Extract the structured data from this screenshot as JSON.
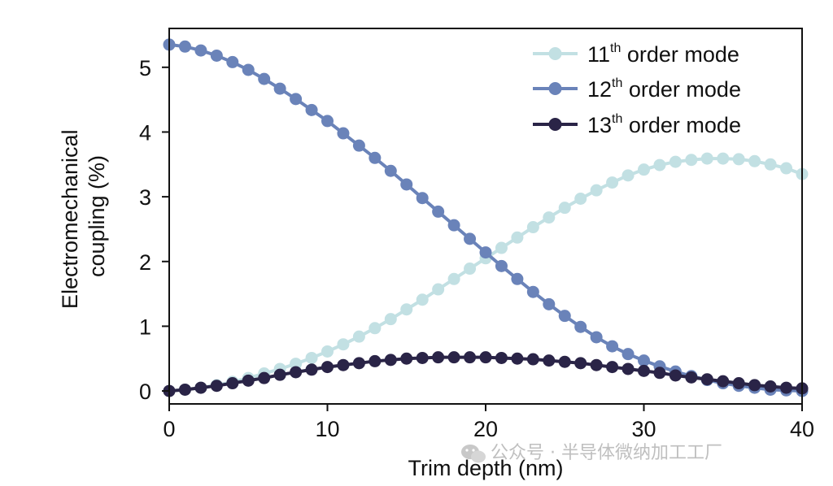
{
  "chart_data": {
    "type": "line",
    "title": "",
    "xlabel": "Trim depth (nm)",
    "ylabel_lines": [
      "Electromechanical",
      "coupling (%)"
    ],
    "xlim": [
      0,
      40
    ],
    "ylim": [
      -0.2,
      5.6
    ],
    "xticks": [
      0,
      10,
      20,
      30,
      40
    ],
    "yticks": [
      0,
      1,
      2,
      3,
      4,
      5
    ],
    "grid": false,
    "legend_position": "top-right",
    "x": [
      0,
      1,
      2,
      3,
      4,
      5,
      6,
      7,
      8,
      9,
      10,
      11,
      12,
      13,
      14,
      15,
      16,
      17,
      18,
      19,
      20,
      21,
      22,
      23,
      24,
      25,
      26,
      27,
      28,
      29,
      30,
      31,
      32,
      33,
      34,
      35,
      36,
      37,
      38,
      39,
      40
    ],
    "series": [
      {
        "name": "11th order mode",
        "label_base": "11",
        "label_sup": "th",
        "label_rest": " order mode",
        "color": "#c2e0e3",
        "values": [
          0.0,
          0.02,
          0.05,
          0.09,
          0.14,
          0.2,
          0.27,
          0.34,
          0.42,
          0.51,
          0.61,
          0.72,
          0.84,
          0.97,
          1.11,
          1.26,
          1.41,
          1.57,
          1.73,
          1.89,
          2.05,
          2.21,
          2.37,
          2.53,
          2.68,
          2.83,
          2.97,
          3.1,
          3.22,
          3.33,
          3.42,
          3.49,
          3.54,
          3.57,
          3.59,
          3.59,
          3.58,
          3.55,
          3.5,
          3.44,
          3.35
        ]
      },
      {
        "name": "12th order mode",
        "label_base": "12",
        "label_sup": "th",
        "label_rest": " order mode",
        "color": "#6a83b9",
        "values": [
          5.35,
          5.32,
          5.26,
          5.18,
          5.08,
          4.96,
          4.82,
          4.67,
          4.51,
          4.34,
          4.17,
          3.98,
          3.79,
          3.6,
          3.4,
          3.19,
          2.98,
          2.77,
          2.56,
          2.35,
          2.14,
          1.93,
          1.73,
          1.53,
          1.34,
          1.16,
          0.99,
          0.83,
          0.69,
          0.57,
          0.47,
          0.38,
          0.3,
          0.23,
          0.17,
          0.12,
          0.08,
          0.05,
          0.02,
          0.01,
          0.0
        ]
      },
      {
        "name": "13th order mode",
        "label_base": "13",
        "label_sup": "th",
        "label_rest": " order mode",
        "color": "#2a2447",
        "values": [
          0.0,
          0.02,
          0.05,
          0.08,
          0.12,
          0.16,
          0.2,
          0.25,
          0.29,
          0.33,
          0.37,
          0.4,
          0.43,
          0.46,
          0.48,
          0.5,
          0.51,
          0.52,
          0.52,
          0.52,
          0.52,
          0.51,
          0.5,
          0.49,
          0.47,
          0.45,
          0.43,
          0.4,
          0.37,
          0.34,
          0.31,
          0.28,
          0.24,
          0.21,
          0.18,
          0.15,
          0.12,
          0.09,
          0.07,
          0.05,
          0.04
        ]
      }
    ]
  },
  "watermark": {
    "text": "公众号 · 半导体微纳加工工厂",
    "icon": "wechat-icon"
  }
}
